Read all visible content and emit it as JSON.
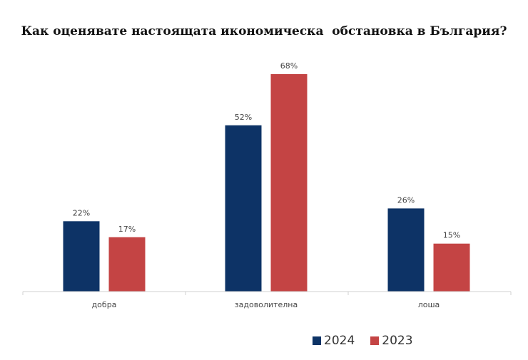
{
  "chart_data": {
    "type": "bar",
    "title": "Как оценявате настоящата икономическа  обстановка в България?",
    "categories": [
      "добра",
      "задоволителна",
      "лоша"
    ],
    "series": [
      {
        "name": "2024",
        "color": "#0d3366",
        "values": [
          22,
          52,
          26
        ],
        "labels": [
          "22%",
          "52%",
          "26%"
        ]
      },
      {
        "name": "2023",
        "color": "#c44444",
        "values": [
          17,
          68,
          15
        ],
        "labels": [
          "17%",
          "68%",
          "15%"
        ]
      }
    ],
    "ylim": [
      0,
      68
    ],
    "xlabel": "",
    "ylabel": "",
    "grid": false,
    "legend_position": "bottom-right",
    "unit": "%"
  }
}
